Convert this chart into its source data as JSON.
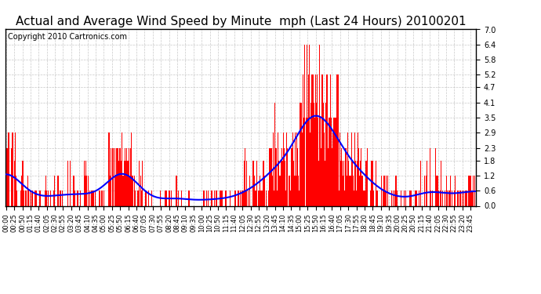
{
  "title": "Actual and Average Wind Speed by Minute  mph (Last 24 Hours) 20100201",
  "copyright": "Copyright 2010 Cartronics.com",
  "ylim": [
    0.0,
    7.0
  ],
  "yticks": [
    0.0,
    0.6,
    1.2,
    1.8,
    2.3,
    2.9,
    3.5,
    4.1,
    4.7,
    5.2,
    5.8,
    6.4,
    7.0
  ],
  "bar_color": "#FF0000",
  "line_color": "#0000FF",
  "bg_color": "#FFFFFF",
  "grid_color": "#BBBBBB",
  "title_fontsize": 11,
  "copyright_fontsize": 7,
  "tick_fontsize": 6,
  "xlabel_rotation": 90
}
